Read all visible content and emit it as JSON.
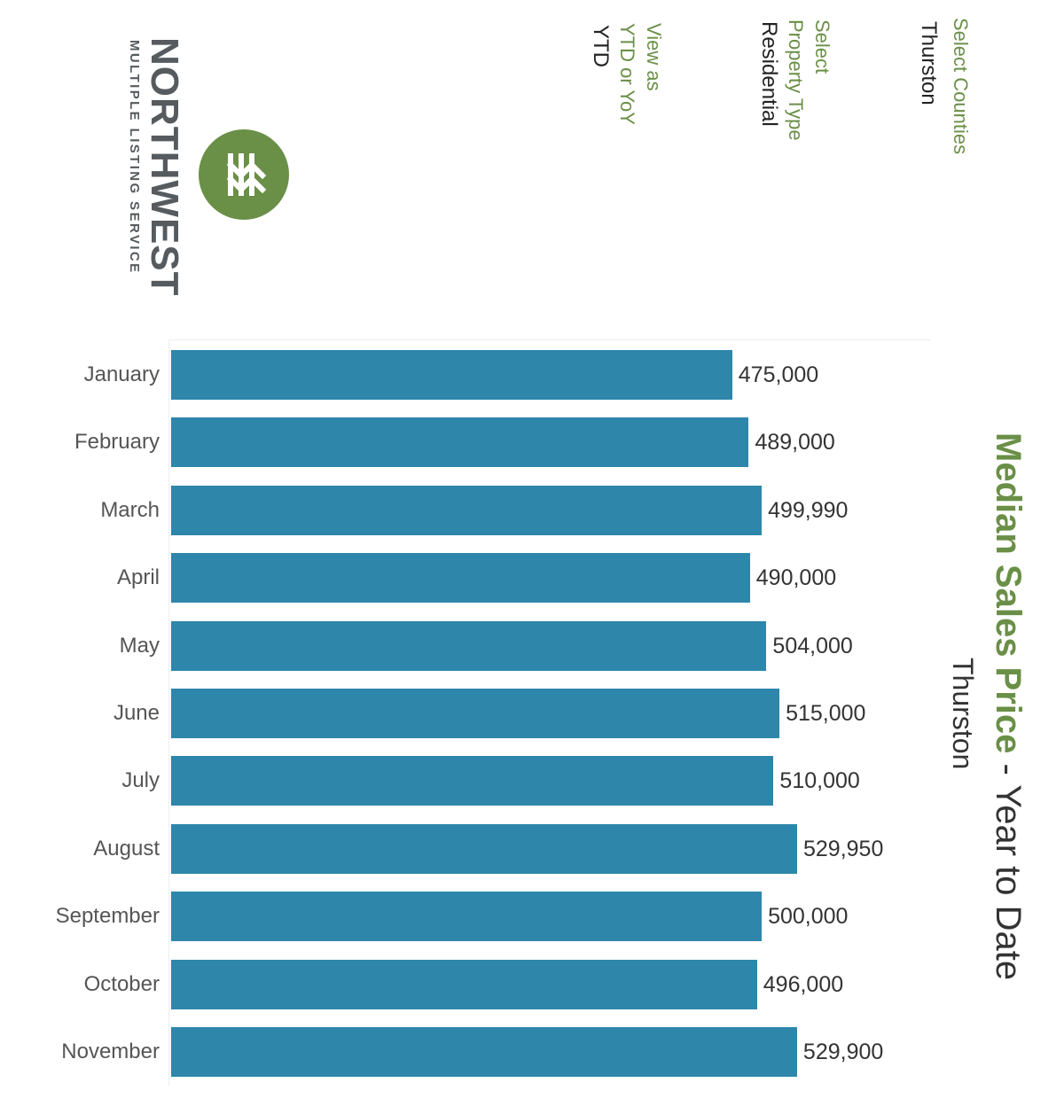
{
  "filters": {
    "counties": {
      "label": "Select Counties",
      "value": "Thurston"
    },
    "property_type": {
      "label_line1": "Select",
      "label_line2": "Property Type",
      "value": "Residential"
    },
    "view": {
      "label_line1": "View as",
      "label_line2": "YTD or YoY",
      "value": "YTD"
    }
  },
  "logo": {
    "wordmark": "NORTHWEST",
    "subtitle": "MULTIPLE LISTING SERVICE",
    "brand_color": "#6a8f47"
  },
  "colors": {
    "bar": "#2e86ab",
    "accent": "#6a8f47",
    "text": "#333333"
  },
  "chart_data": {
    "type": "bar",
    "orientation": "horizontal",
    "title_main": "Median Sales Price",
    "title_suffix": " - Year to Date",
    "subtitle": "Thurston",
    "categories": [
      "January",
      "February",
      "March",
      "April",
      "May",
      "June",
      "July",
      "August",
      "September",
      "October",
      "November"
    ],
    "values": [
      475000,
      489000,
      499990,
      490000,
      504000,
      515000,
      510000,
      529950,
      500000,
      496000,
      529900
    ],
    "value_labels": [
      "475,000",
      "489,000",
      "499,990",
      "490,000",
      "504,000",
      "515,000",
      "510,000",
      "529,950",
      "500,000",
      "496,000",
      "529,900"
    ],
    "xlim": [
      0,
      560000
    ],
    "grid": false,
    "legend": "none"
  }
}
